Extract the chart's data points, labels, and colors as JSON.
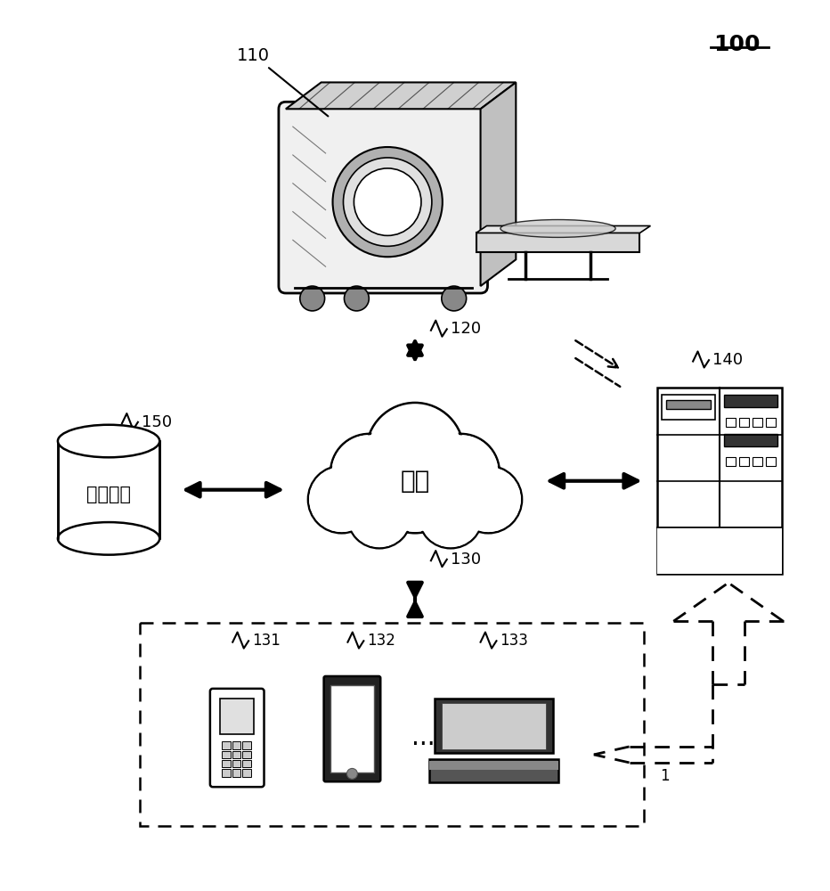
{
  "title": "100",
  "bg_color": "#ffffff",
  "label_110": "110",
  "label_120": "120",
  "label_130": "130",
  "label_131": "131",
  "label_132": "132",
  "label_133": "133",
  "label_140": "140",
  "label_150": "150",
  "text_storage": "存储设备",
  "text_network": "网络",
  "arrow_color": "#000000"
}
